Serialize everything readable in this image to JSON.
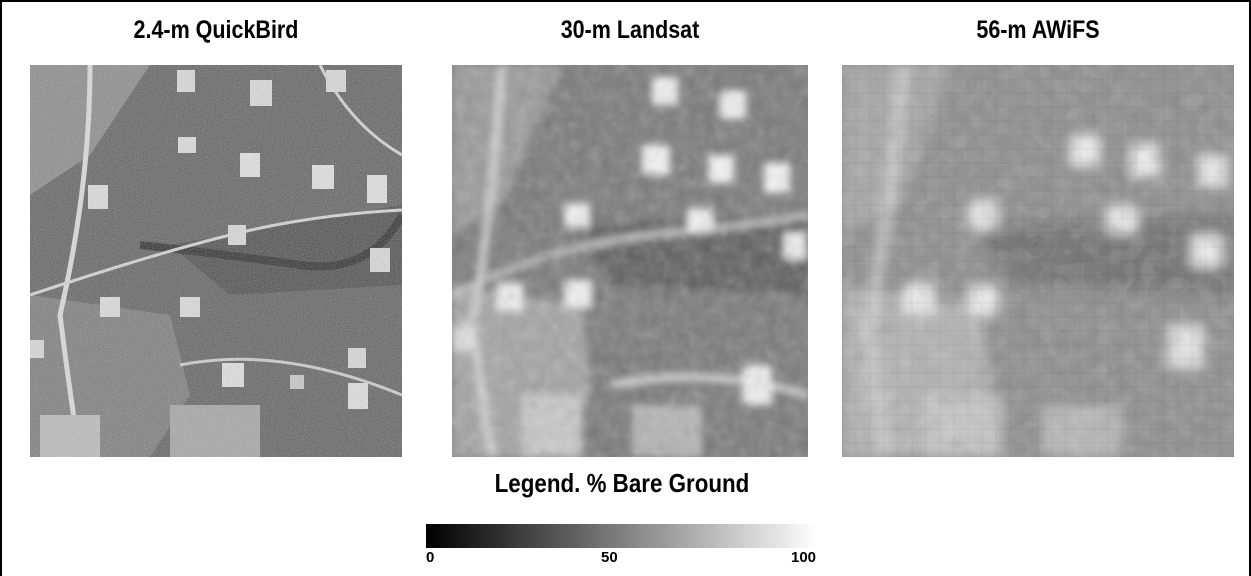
{
  "panels": [
    {
      "title": "2.4-m QuickBird",
      "image_description": "panel-1"
    },
    {
      "title": "30-m Landsat",
      "image_description": "panel-2"
    },
    {
      "title": "56-m AWiFS",
      "image_description": "panel-3"
    }
  ],
  "legend": {
    "title": "Legend. % Bare Ground",
    "min_label": "0",
    "mid_label": "50",
    "max_label": "100",
    "colors": {
      "low": "#000000",
      "high": "#ffffff"
    }
  }
}
